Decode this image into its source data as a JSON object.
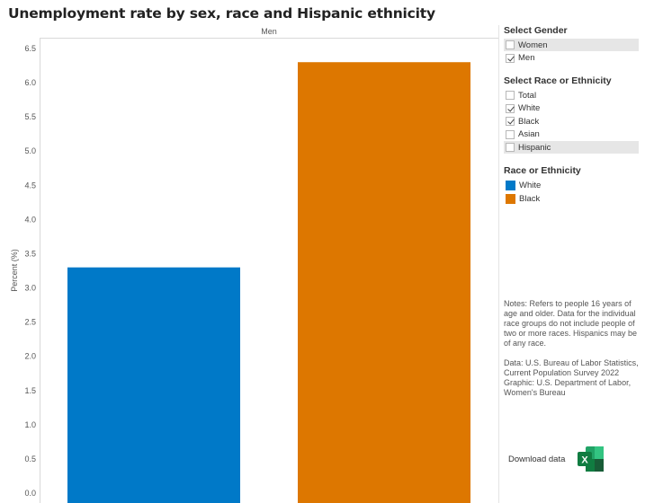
{
  "title": "Unemployment rate by sex, race and Hispanic ethnicity",
  "colors": {
    "white": "#0079c8",
    "black": "#dd7700"
  },
  "chart_data": {
    "type": "bar",
    "panel_header": "Men",
    "categories": [
      "White",
      "Black"
    ],
    "values": [
      3.3,
      6.3
    ],
    "ylabel": "Percent (%)",
    "xlabel": "",
    "ylim": [
      0,
      6.5
    ],
    "yticks": [
      "0.0",
      "0.5",
      "1.0",
      "1.5",
      "2.0",
      "2.5",
      "3.0",
      "3.5",
      "4.0",
      "4.5",
      "5.0",
      "5.5",
      "6.0",
      "6.5"
    ],
    "grid": false
  },
  "filters": {
    "gender": {
      "title": "Select Gender",
      "items": [
        {
          "label": "Women",
          "checked": false
        },
        {
          "label": "Men",
          "checked": true
        }
      ]
    },
    "race": {
      "title": "Select Race or Ethnicity",
      "items": [
        {
          "label": "Total",
          "checked": false
        },
        {
          "label": "White",
          "checked": true
        },
        {
          "label": "Black",
          "checked": true
        },
        {
          "label": "Asian",
          "checked": false
        },
        {
          "label": "Hispanic",
          "checked": false
        }
      ]
    }
  },
  "legend": {
    "title": "Race or Ethnicity",
    "items": [
      {
        "label": "White",
        "color": "#0079c8"
      },
      {
        "label": "Black",
        "color": "#dd7700"
      }
    ]
  },
  "notes": {
    "text": "Notes: Refers to people 16 years of age and older. Data for the individual race groups do not include people of two or more races. Hispanics may be of any race.",
    "source": "Data: U.S. Bureau of Labor Statistics, Current Population Survey 2022",
    "graphic": "Graphic: U.S. Department of Labor, Women's Bureau"
  },
  "download": {
    "label": "Download data",
    "icon": "excel-icon"
  }
}
